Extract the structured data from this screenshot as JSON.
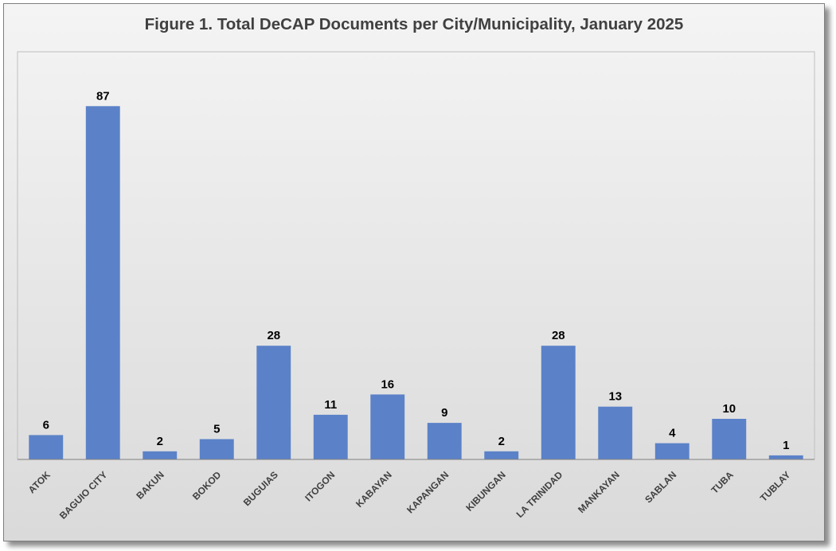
{
  "chart_data": {
    "type": "bar",
    "title": "Figure 1. Total DeCAP Documents per City/Municipality, January 2025",
    "categories": [
      "ATOK",
      "BAGUIO CITY",
      "BAKUN",
      "BOKOD",
      "BUGUIAS",
      "ITOGON",
      "KABAYAN",
      "KAPANGAN",
      "KIBUNGAN",
      "LA TRINIDAD",
      "MANKAYAN",
      "SABLAN",
      "TUBA",
      "TUBLAY"
    ],
    "values": [
      6,
      87,
      2,
      5,
      28,
      11,
      16,
      9,
      2,
      28,
      13,
      4,
      10,
      1
    ],
    "data_labels": [
      "6",
      "87",
      "2",
      "5",
      "28",
      "11",
      "16",
      "9",
      "2",
      "28",
      "13",
      "4",
      "10",
      "1"
    ],
    "xlabel": "",
    "ylabel": "",
    "ylim": [
      0,
      100
    ],
    "grid": false,
    "legend": "none",
    "bar_color": "#5b82c8",
    "tick_label_rotation": "-45deg"
  }
}
